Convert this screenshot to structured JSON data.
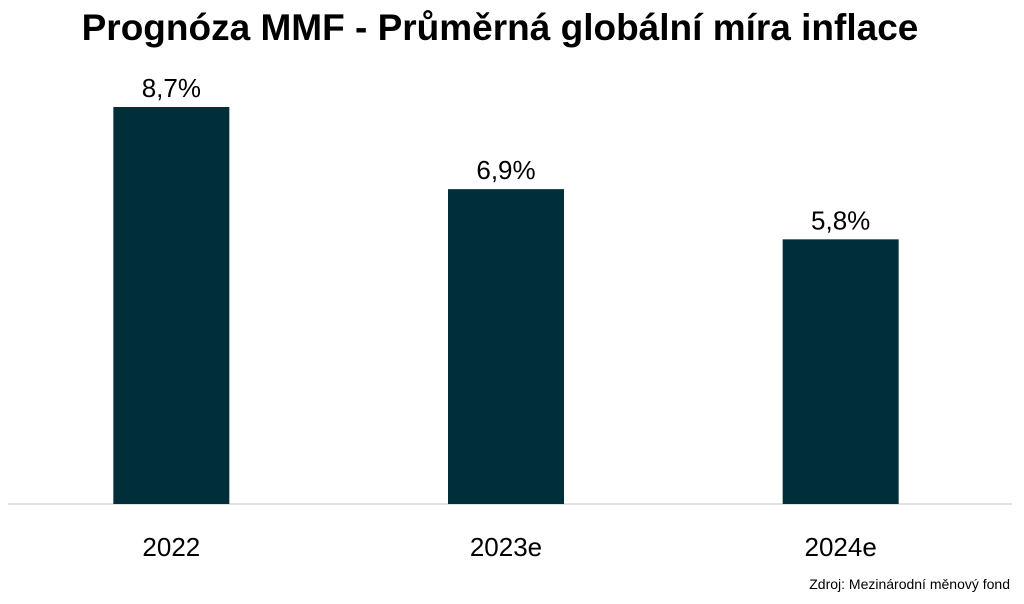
{
  "chart_data": {
    "type": "bar",
    "title": "Prognóza MMF - Průměrná globální míra inflace",
    "categories": [
      "2022",
      "2023e",
      "2024e"
    ],
    "values": [
      8.7,
      6.9,
      5.8
    ],
    "value_labels": [
      "8,7%",
      "6,9%",
      "5,8%"
    ],
    "unit": "%",
    "xlabel": "",
    "ylabel": "",
    "ylim": [
      0,
      8.7
    ],
    "grid": false,
    "legend": "none",
    "bar_color": "#002f3a",
    "baseline_color": "#d9d9d9"
  },
  "source": "Zdroj: Mezinárodní měnový fond"
}
